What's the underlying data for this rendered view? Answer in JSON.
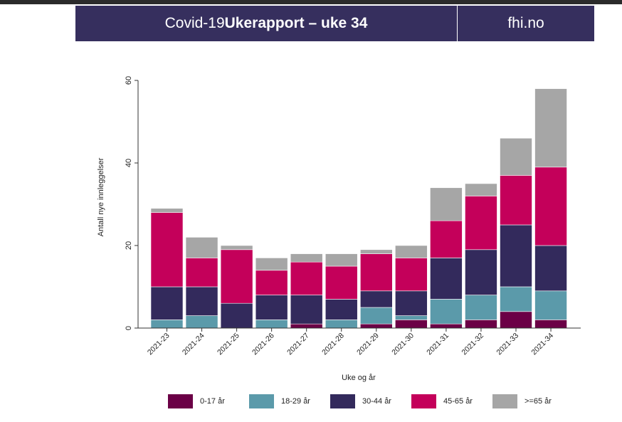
{
  "header": {
    "title_prefix": "Covid-19 ",
    "title_bold": "Ukerapport – uke 34",
    "site": "fhi.no",
    "background": "#362f5e"
  },
  "chart_data": {
    "type": "bar",
    "stacked": true,
    "title": "",
    "xlabel": "Uke og år",
    "ylabel": "Antall nye innleggelser",
    "ylim": [
      0,
      60
    ],
    "yticks": [
      0,
      20,
      40,
      60
    ],
    "grid": false,
    "legend_position": "bottom",
    "categories": [
      "2021-23",
      "2021-24",
      "2021-25",
      "2021-26",
      "2021-27",
      "2021-28",
      "2021-29",
      "2021-30",
      "2021-31",
      "2021-32",
      "2021-33",
      "2021-34"
    ],
    "series": [
      {
        "name": "0-17 år",
        "color": "#6b0046",
        "values": [
          0,
          0,
          0,
          0,
          1,
          0,
          1,
          2,
          1,
          2,
          4,
          2
        ]
      },
      {
        "name": "18-29 år",
        "color": "#5b9aaa",
        "values": [
          2,
          3,
          0,
          2,
          0,
          2,
          4,
          1,
          6,
          6,
          6,
          7
        ]
      },
      {
        "name": "30-44 år",
        "color": "#332a5c",
        "values": [
          8,
          7,
          6,
          6,
          7,
          5,
          4,
          6,
          10,
          11,
          15,
          11
        ]
      },
      {
        "name": "45-65 år",
        "color": "#c4005a",
        "values": [
          18,
          7,
          13,
          6,
          8,
          8,
          9,
          8,
          9,
          13,
          12,
          19
        ]
      },
      {
        "name": ">=65 år",
        "color": "#a6a6a6",
        "values": [
          1,
          5,
          1,
          3,
          2,
          3,
          1,
          3,
          8,
          3,
          9,
          19
        ]
      }
    ]
  }
}
